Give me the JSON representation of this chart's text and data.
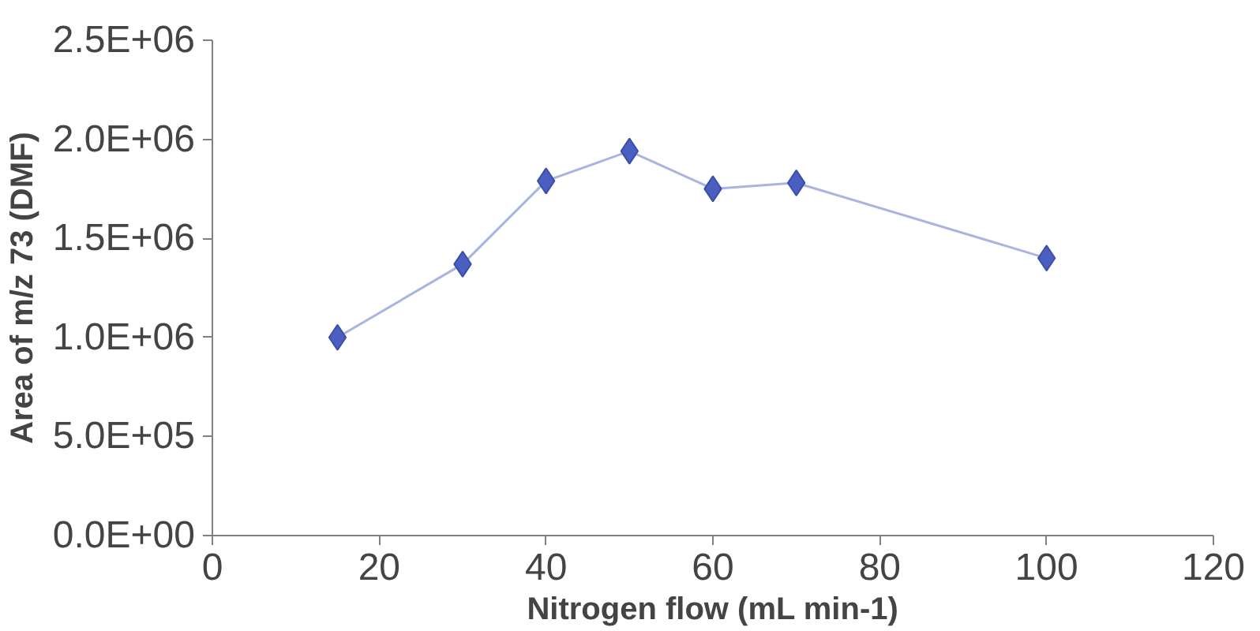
{
  "chart_data": {
    "type": "line",
    "xlabel": "Nitrogen flow (mL min-1)",
    "ylabel": "Area of m/z 73 (DMF)",
    "x": [
      15,
      30,
      40,
      50,
      60,
      70,
      100
    ],
    "series": [
      {
        "color": "#4a5fc1",
        "values": [
          1000000,
          1370000,
          1790000,
          1940000,
          1750000,
          1780000,
          1400000
        ]
      }
    ],
    "xlim": [
      0,
      120
    ],
    "xticks": [
      0,
      20,
      40,
      60,
      80,
      100,
      120
    ],
    "ylim": [
      0,
      2500000
    ],
    "yticks": [
      {
        "value": 0,
        "label": "0.0E+00"
      },
      {
        "value": 500000,
        "label": "5.0E+05"
      },
      {
        "value": 1000000,
        "label": "1.0E+06"
      },
      {
        "value": 1500000,
        "label": "1.5E+06"
      },
      {
        "value": 2000000,
        "label": "2.0E+06"
      },
      {
        "value": 2500000,
        "label": "2.5E+06"
      }
    ],
    "grid": false,
    "marker": "diamond",
    "line_style": "solid"
  }
}
